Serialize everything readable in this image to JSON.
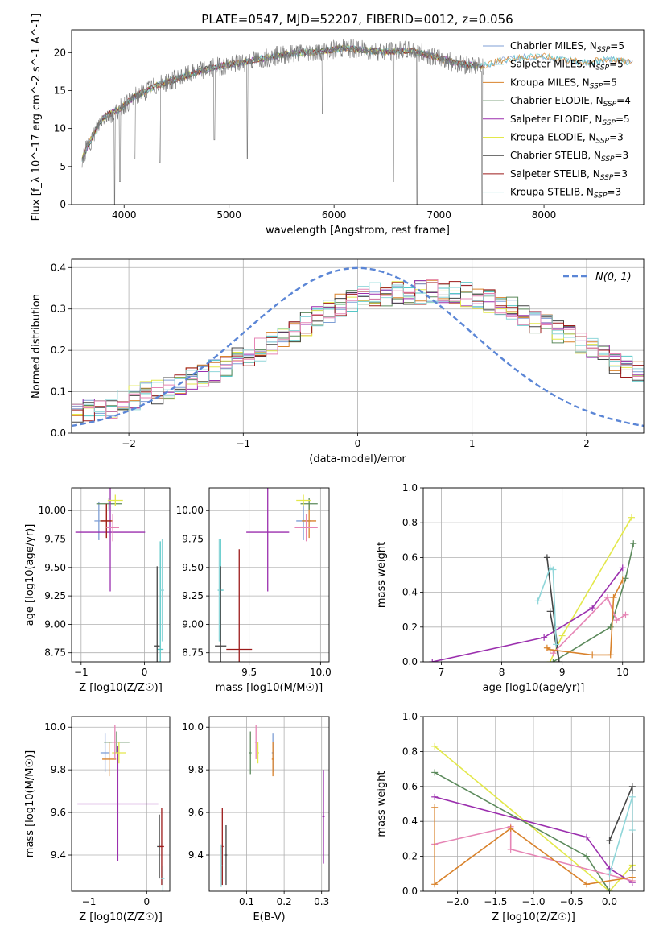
{
  "figure_title": "PLATE=0547, MJD=52207, FIBERID=0012, z=0.056",
  "palette": {
    "Chabrier MILES": "#7f9fd5",
    "Salpeter MILES": "#56c7c7",
    "Kroupa MILES": "#d9822b",
    "Chabrier ELODIE": "#5c8a5c",
    "Salpeter ELODIE": "#9b2fae",
    "Kroupa ELODIE": "#e3e84a",
    "Chabrier STELIB": "#444444",
    "Salpeter STELIB": "#9c1a1a",
    "Kroupa STELIB": "#8fd6d9",
    "pink": "#e685b5",
    "lime": "#cde25a",
    "normal_curve": "#5b86d6",
    "gray_spectrum": "#777777"
  },
  "chart_data": [
    {
      "id": "spectrum",
      "type": "line",
      "xlabel": "wavelength [Angstrom, rest frame]",
      "ylabel": "Flux [f_λ 10^-17 erg cm^-2 s^-1 A^-1]",
      "xlim": [
        3500,
        8950
      ],
      "ylim": [
        0,
        23
      ],
      "xticks": [
        4000,
        5000,
        6000,
        7000,
        8000
      ],
      "yticks": [
        0,
        5,
        10,
        15,
        20
      ],
      "grid": false,
      "legend_position": "right",
      "legend": [
        {
          "label": "Chabrier MILES, N",
          "sub": "SSP",
          "tail": "=5"
        },
        {
          "label": "Salpeter MILES, N",
          "sub": "SSP",
          "tail": "=5"
        },
        {
          "label": "Kroupa MILES, N",
          "sub": "SSP",
          "tail": "=5"
        },
        {
          "label": "Chabrier ELODIE, N",
          "sub": "SSP",
          "tail": "=4"
        },
        {
          "label": "Salpeter ELODIE, N",
          "sub": "SSP",
          "tail": "=5"
        },
        {
          "label": "Kroupa ELODIE, N",
          "sub": "SSP",
          "tail": "=3"
        },
        {
          "label": "Chabrier STELIB, N",
          "sub": "SSP",
          "tail": "=3"
        },
        {
          "label": "Salpeter STELIB, N",
          "sub": "SSP",
          "tail": "=3"
        },
        {
          "label": "Kroupa STELIB, N",
          "sub": "SSP",
          "tail": "=3"
        }
      ],
      "continuum": [
        [
          3600,
          6.0
        ],
        [
          3700,
          9.0
        ],
        [
          3800,
          11.5
        ],
        [
          3950,
          12.5
        ],
        [
          4100,
          14.2
        ],
        [
          4300,
          15.6
        ],
        [
          4500,
          16.5
        ],
        [
          4700,
          17.5
        ],
        [
          4900,
          18.2
        ],
        [
          5100,
          18.6
        ],
        [
          5300,
          19.2
        ],
        [
          5500,
          19.7
        ],
        [
          5700,
          20.0
        ],
        [
          5900,
          20.2
        ],
        [
          6100,
          20.6
        ],
        [
          6300,
          20.3
        ],
        [
          6500,
          20.1
        ],
        [
          6700,
          20.3
        ],
        [
          6900,
          19.7
        ],
        [
          7000,
          19.3
        ],
        [
          7200,
          18.5
        ],
        [
          7400,
          18.2
        ],
        [
          7600,
          19.0
        ],
        [
          7800,
          19.4
        ],
        [
          8000,
          19.5
        ],
        [
          8200,
          19.0
        ],
        [
          8400,
          18.7
        ],
        [
          8600,
          19.1
        ],
        [
          8800,
          18.8
        ]
      ],
      "absorption_dips": [
        [
          3910,
          0.0
        ],
        [
          3960,
          3.0
        ],
        [
          4100,
          6.0
        ],
        [
          4340,
          5.5
        ],
        [
          4860,
          8.5
        ],
        [
          5175,
          6.0
        ],
        [
          5890,
          12.0
        ],
        [
          6565,
          3.0
        ],
        [
          6790,
          0.0
        ],
        [
          7410,
          0.0
        ]
      ],
      "observed_range": [
        3600,
        7420
      ]
    },
    {
      "id": "residuals",
      "type": "step",
      "xlabel": "(data-model)/error",
      "ylabel": "Normed distribution",
      "xlim": [
        -2.5,
        2.5
      ],
      "ylim": [
        0,
        0.42
      ],
      "xticks": [
        -2,
        -1,
        0,
        1,
        2
      ],
      "yticks": [
        0.0,
        0.1,
        0.2,
        0.3,
        0.4
      ],
      "grid": true,
      "legend_position": "top-right",
      "legend": [
        {
          "label": "N(0, 1)",
          "style": "dashed"
        }
      ],
      "bin_width": 0.1,
      "bin_start": -2.5,
      "profile": [
        0.05,
        0.055,
        0.06,
        0.065,
        0.075,
        0.085,
        0.095,
        0.1,
        0.11,
        0.12,
        0.13,
        0.14,
        0.15,
        0.165,
        0.18,
        0.19,
        0.2,
        0.215,
        0.235,
        0.25,
        0.265,
        0.28,
        0.295,
        0.31,
        0.32,
        0.33,
        0.335,
        0.335,
        0.34,
        0.34,
        0.34,
        0.345,
        0.345,
        0.34,
        0.335,
        0.33,
        0.32,
        0.31,
        0.3,
        0.285,
        0.27,
        0.26,
        0.245,
        0.23,
        0.215,
        0.2,
        0.185,
        0.17,
        0.16,
        0.15
      ]
    },
    {
      "id": "z-age",
      "type": "errorbar",
      "xlabel": "Z [log10(Z/Z☉)]",
      "ylabel": "age  [log10(age/yr)]",
      "xlim": [
        -1.15,
        0.4
      ],
      "ylim": [
        8.67,
        10.2
      ],
      "xticks": [
        -1,
        0
      ],
      "yticks": [
        8.75,
        9.0,
        9.25,
        9.5,
        9.75,
        10.0
      ],
      "grid": true,
      "points": [
        {
          "c": "Chabrier MILES",
          "x": -0.72,
          "y": 9.91,
          "xe": 0.07,
          "ye": 0.17
        },
        {
          "c": "Salpeter MILES",
          "x": 0.25,
          "y": 8.78,
          "xe": 0.05,
          "ye": 0.95
        },
        {
          "c": "Kroupa MILES",
          "x": -0.6,
          "y": 9.91,
          "xe": 0.1,
          "ye": 0.15
        },
        {
          "c": "Chabrier ELODIE",
          "x": -0.56,
          "y": 10.06,
          "xe": 0.2,
          "ye": 0.05
        },
        {
          "c": "Salpeter ELODIE",
          "x": -0.54,
          "y": 9.81,
          "xe": 0.55,
          "ye": 0.52
        },
        {
          "c": "Kroupa ELODIE",
          "x": -0.46,
          "y": 10.09,
          "xe": 0.12,
          "ye": 0.05
        },
        {
          "c": "Chabrier STELIB",
          "x": 0.2,
          "y": 8.81,
          "xe": 0.04,
          "ye": 0.7
        },
        {
          "c": "Salpeter STELIB",
          "x": -0.6,
          "y": 9.91,
          "xe": 0.08,
          "ye": 0.15
        },
        {
          "c": "Kroupa STELIB",
          "x": 0.28,
          "y": 9.3,
          "xe": 0.03,
          "ye": 0.45
        },
        {
          "c": "pink",
          "x": -0.5,
          "y": 9.85,
          "xe": 0.1,
          "ye": 0.12
        }
      ]
    },
    {
      "id": "mass-age",
      "type": "errorbar",
      "xlabel": "mass [log10(M/M☉)]",
      "ylabel": "",
      "xlim": [
        9.22,
        10.06
      ],
      "ylim": [
        8.67,
        10.2
      ],
      "xticks": [
        9.5,
        10.0
      ],
      "yticks": [
        8.75,
        9.0,
        9.25,
        9.5,
        9.75,
        10.0
      ],
      "grid": true,
      "points": [
        {
          "c": "Chabrier MILES",
          "x": 9.88,
          "y": 9.91,
          "xe": 0.05,
          "ye": 0.17
        },
        {
          "c": "Salpeter MILES",
          "x": 9.3,
          "y": 9.3,
          "xe": 0.02,
          "ye": 0.45
        },
        {
          "c": "Kroupa MILES",
          "x": 9.92,
          "y": 9.91,
          "xe": 0.05,
          "ye": 0.15
        },
        {
          "c": "Chabrier ELODIE",
          "x": 9.92,
          "y": 10.06,
          "xe": 0.06,
          "ye": 0.05
        },
        {
          "c": "Salpeter ELODIE",
          "x": 9.63,
          "y": 9.81,
          "xe": 0.15,
          "ye": 0.52
        },
        {
          "c": "Kroupa ELODIE",
          "x": 9.88,
          "y": 10.09,
          "xe": 0.05,
          "ye": 0.05
        },
        {
          "c": "Chabrier STELIB",
          "x": 9.3,
          "y": 8.81,
          "xe": 0.04,
          "ye": 0.7
        },
        {
          "c": "Salpeter STELIB",
          "x": 9.43,
          "y": 8.78,
          "xe": 0.09,
          "ye": 0.88
        },
        {
          "c": "Kroupa STELIB",
          "x": 9.29,
          "y": 9.3,
          "xe": 0.01,
          "ye": 0.45
        },
        {
          "c": "pink",
          "x": 9.9,
          "y": 9.85,
          "xe": 0.08,
          "ye": 0.12
        }
      ]
    },
    {
      "id": "age-weight",
      "type": "line",
      "xlabel": "age  [log10(age/yr)]",
      "ylabel": "mass weight",
      "xlim": [
        6.7,
        10.35
      ],
      "ylim": [
        0,
        1.0
      ],
      "xticks": [
        7,
        8,
        9,
        10
      ],
      "yticks": [
        0.0,
        0.2,
        0.4,
        0.6,
        0.8,
        1.0
      ],
      "grid": true,
      "series": [
        {
          "c": "Kroupa ELODIE",
          "x": [
            8.8,
            9.0,
            10.15
          ],
          "y": [
            0.0,
            0.15,
            0.83
          ]
        },
        {
          "c": "Chabrier ELODIE",
          "x": [
            8.85,
            9.8,
            10.05,
            10.18
          ],
          "y": [
            0.0,
            0.2,
            0.48,
            0.68
          ]
        },
        {
          "c": "Salpeter ELODIE",
          "x": [
            6.85,
            8.7,
            9.5,
            10.0
          ],
          "y": [
            0.0,
            0.14,
            0.31,
            0.54
          ]
        },
        {
          "c": "Chabrier STELIB",
          "x": [
            8.75,
            8.95,
            8.8
          ],
          "y": [
            0.6,
            0.0,
            0.29
          ]
        },
        {
          "c": "Kroupa STELIB",
          "x": [
            8.6,
            8.8,
            8.85,
            8.9
          ],
          "y": [
            0.35,
            0.54,
            0.53,
            0.1
          ]
        },
        {
          "c": "pink",
          "x": [
            8.85,
            9.75,
            9.9,
            10.05
          ],
          "y": [
            0.05,
            0.37,
            0.24,
            0.27
          ]
        },
        {
          "c": "Kroupa MILES",
          "x": [
            8.75,
            8.8,
            9.5,
            9.8,
            9.85,
            10.0
          ],
          "y": [
            0.08,
            0.07,
            0.04,
            0.04,
            0.37,
            0.47
          ]
        }
      ]
    },
    {
      "id": "z-mass",
      "type": "errorbar",
      "xlabel": "Z [log10(Z/Z☉)]",
      "ylabel": "mass [log10(M/M☉)]",
      "xlim": [
        -1.3,
        0.4
      ],
      "ylim": [
        9.23,
        10.05
      ],
      "xticks": [
        -1,
        0
      ],
      "yticks": [
        9.4,
        9.6,
        9.8,
        10.0
      ],
      "grid": true,
      "points": [
        {
          "c": "Chabrier MILES",
          "x": -0.72,
          "y": 9.88,
          "xe": 0.08,
          "ye": 0.09
        },
        {
          "c": "Kroupa MILES",
          "x": -0.65,
          "y": 9.85,
          "xe": 0.12,
          "ye": 0.08
        },
        {
          "c": "Chabrier ELODIE",
          "x": -0.52,
          "y": 9.93,
          "xe": 0.22,
          "ye": 0.05
        },
        {
          "c": "Salpeter ELODIE",
          "x": -0.5,
          "y": 9.64,
          "xe": 0.7,
          "ye": 0.27
        },
        {
          "c": "Kroupa ELODIE",
          "x": -0.48,
          "y": 9.88,
          "xe": 0.12,
          "ye": 0.05
        },
        {
          "c": "Chabrier STELIB",
          "x": 0.22,
          "y": 9.44,
          "xe": 0.04,
          "ye": 0.15
        },
        {
          "c": "Salpeter STELIB",
          "x": 0.26,
          "y": 9.44,
          "xe": 0.04,
          "ye": 0.18
        },
        {
          "c": "Kroupa STELIB",
          "x": 0.28,
          "y": 9.29,
          "xe": 0.03,
          "ye": 0.06
        },
        {
          "c": "pink",
          "x": -0.55,
          "y": 9.93,
          "xe": 0.05,
          "ye": 0.08
        }
      ]
    },
    {
      "id": "ebv-mass",
      "type": "errorbar",
      "xlabel": "E(B-V)",
      "ylabel": "",
      "xlim": [
        0.0,
        0.32
      ],
      "ylim": [
        9.23,
        10.05
      ],
      "xticks": [
        0.1,
        0.2,
        0.3
      ],
      "yticks": [
        9.4,
        9.6,
        9.8,
        10.0
      ],
      "grid": true,
      "points": [
        {
          "c": "Chabrier MILES",
          "x": 0.17,
          "y": 9.88,
          "xe": 0.003,
          "ye": 0.09
        },
        {
          "c": "Kroupa MILES",
          "x": 0.17,
          "y": 9.85,
          "xe": 0.003,
          "ye": 0.08
        },
        {
          "c": "Chabrier ELODIE",
          "x": 0.11,
          "y": 9.88,
          "xe": 0.003,
          "ye": 0.1
        },
        {
          "c": "Salpeter ELODIE",
          "x": 0.305,
          "y": 9.58,
          "xe": 0.003,
          "ye": 0.22
        },
        {
          "c": "Kroupa ELODIE",
          "x": 0.13,
          "y": 9.88,
          "xe": 0.003,
          "ye": 0.05
        },
        {
          "c": "Chabrier STELIB",
          "x": 0.045,
          "y": 9.4,
          "xe": 0.003,
          "ye": 0.14
        },
        {
          "c": "Salpeter STELIB",
          "x": 0.035,
          "y": 9.44,
          "xe": 0.003,
          "ye": 0.18
        },
        {
          "c": "Kroupa STELIB",
          "x": 0.032,
          "y": 9.35,
          "xe": 0.003,
          "ye": 0.1
        },
        {
          "c": "pink",
          "x": 0.125,
          "y": 9.93,
          "xe": 0.003,
          "ye": 0.08
        }
      ]
    },
    {
      "id": "z-weight",
      "type": "line",
      "xlabel": "Z [log10(Z/Z☉)]",
      "ylabel": "mass weight",
      "xlim": [
        -2.45,
        0.45
      ],
      "ylim": [
        0,
        1.0
      ],
      "xticks": [
        -2.0,
        -1.5,
        -1.0,
        -0.5,
        0.0
      ],
      "yticks": [
        0.0,
        0.2,
        0.4,
        0.6,
        0.8,
        1.0
      ],
      "grid": true,
      "series": [
        {
          "c": "Kroupa ELODIE",
          "x": [
            -2.3,
            0.0,
            0.3
          ],
          "y": [
            0.83,
            0.0,
            0.15
          ]
        },
        {
          "c": "Chabrier ELODIE",
          "x": [
            -2.3,
            -0.3,
            0.0
          ],
          "y": [
            0.68,
            0.2,
            0.0
          ]
        },
        {
          "c": "Salpeter ELODIE",
          "x": [
            -2.3,
            -0.3,
            0.0,
            0.3
          ],
          "y": [
            0.54,
            0.31,
            0.13,
            0.05
          ]
        },
        {
          "c": "pink",
          "x": [
            -2.3,
            -1.3,
            -1.3,
            0.3
          ],
          "y": [
            0.27,
            0.37,
            0.24,
            0.06
          ]
        },
        {
          "c": "Kroupa MILES",
          "x": [
            -2.3,
            -2.3,
            -1.3,
            -0.3,
            0.3
          ],
          "y": [
            0.48,
            0.04,
            0.36,
            0.04,
            0.08
          ]
        },
        {
          "c": "Chabrier STELIB",
          "x": [
            0.0,
            0.3,
            0.3
          ],
          "y": [
            0.29,
            0.6,
            0.12
          ]
        },
        {
          "c": "Kroupa STELIB",
          "x": [
            0.0,
            0.3,
            0.3
          ],
          "y": [
            0.1,
            0.54,
            0.35
          ]
        }
      ]
    }
  ]
}
